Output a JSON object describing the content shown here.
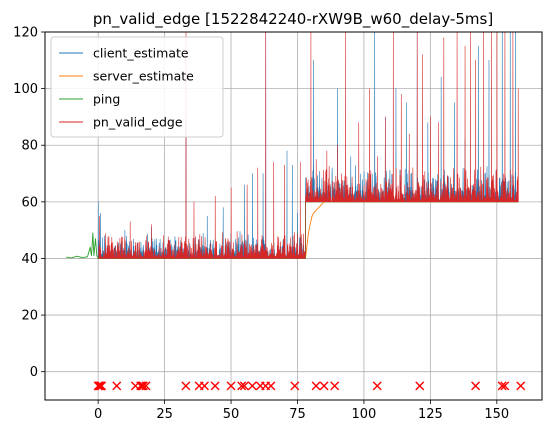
{
  "chart_data": {
    "type": "line",
    "title": "pn_valid_edge [1522842240-rXW9B_w60_delay-5ms]",
    "xlabel": "",
    "ylabel": "",
    "xlim": [
      -20,
      167
    ],
    "ylim": [
      -10,
      120
    ],
    "xticks": [
      0,
      25,
      50,
      75,
      100,
      125,
      150
    ],
    "yticks": [
      0,
      20,
      40,
      60,
      80,
      100,
      120
    ],
    "grid": true,
    "legend_position": "top-left",
    "series": [
      {
        "name": "client_estimate",
        "color": "#1f77b4",
        "base_levels": [
          {
            "x": [
              0,
              78
            ],
            "y": 40
          },
          {
            "x": [
              78,
              158
            ],
            "y": 60
          }
        ],
        "spikes": [
          [
            0,
            60
          ],
          [
            0.8,
            56
          ],
          [
            10,
            50
          ],
          [
            20,
            51
          ],
          [
            33,
            90
          ],
          [
            41,
            55
          ],
          [
            47,
            58
          ],
          [
            55,
            66
          ],
          [
            58,
            70
          ],
          [
            62,
            70
          ],
          [
            63,
            120
          ],
          [
            71,
            78
          ],
          [
            73,
            73
          ],
          [
            75,
            56
          ],
          [
            81,
            110
          ],
          [
            88,
            72
          ],
          [
            90,
            100
          ],
          [
            95,
            76
          ],
          [
            104,
            120
          ],
          [
            108,
            90
          ],
          [
            112,
            100
          ],
          [
            116,
            95
          ],
          [
            120,
            120
          ],
          [
            124,
            88
          ],
          [
            129,
            104
          ],
          [
            134,
            95
          ],
          [
            138,
            82
          ],
          [
            143,
            115
          ],
          [
            147,
            110
          ],
          [
            152,
            120
          ],
          [
            155,
            120
          ],
          [
            157,
            120
          ]
        ]
      },
      {
        "name": "server_estimate",
        "color": "#ff7f0e",
        "points": [
          [
            78,
            40
          ],
          [
            78.5,
            44
          ],
          [
            79,
            48
          ],
          [
            79.5,
            51
          ],
          [
            80,
            53
          ],
          [
            80.5,
            55
          ],
          [
            81,
            56
          ],
          [
            82,
            57
          ],
          [
            83,
            58
          ],
          [
            84,
            59
          ],
          [
            85,
            60
          ],
          [
            158,
            60
          ]
        ]
      },
      {
        "name": "ping",
        "color": "#2ca02c",
        "points": [
          [
            -12,
            40.5
          ],
          [
            -10,
            40.2
          ],
          [
            -8,
            40.8
          ],
          [
            -6,
            40.3
          ],
          [
            -4,
            40.6
          ],
          [
            -3,
            44
          ],
          [
            -2.5,
            41
          ],
          [
            -2,
            49
          ],
          [
            -1.6,
            41
          ],
          [
            -1,
            47
          ],
          [
            -0.5,
            41
          ],
          [
            0,
            40
          ],
          [
            78,
            40
          ],
          [
            78,
            60
          ],
          [
            158,
            60
          ]
        ]
      },
      {
        "name": "pn_valid_edge",
        "color": "#d62728",
        "base_levels": [
          {
            "x": [
              0,
              78
            ],
            "y": 40
          },
          {
            "x": [
              78,
              158
            ],
            "y": 60
          }
        ],
        "spikes": [
          [
            0.5,
            55
          ],
          [
            12,
            53
          ],
          [
            20,
            52
          ],
          [
            33,
            120
          ],
          [
            36,
            60
          ],
          [
            44,
            62
          ],
          [
            50,
            65
          ],
          [
            56,
            66
          ],
          [
            60,
            72
          ],
          [
            63,
            120
          ],
          [
            66,
            74
          ],
          [
            70,
            73
          ],
          [
            76,
            74
          ],
          [
            80,
            120
          ],
          [
            82,
            75
          ],
          [
            86,
            78
          ],
          [
            90,
            80
          ],
          [
            93,
            120
          ],
          [
            98,
            88
          ],
          [
            102,
            100
          ],
          [
            105,
            76
          ],
          [
            108,
            90
          ],
          [
            111,
            120
          ],
          [
            114,
            98
          ],
          [
            117,
            84
          ],
          [
            120,
            120
          ],
          [
            122,
            112
          ],
          [
            125,
            90
          ],
          [
            128,
            88
          ],
          [
            130,
            118
          ],
          [
            135,
            120
          ],
          [
            138,
            115
          ],
          [
            140,
            120
          ],
          [
            142,
            110
          ],
          [
            145,
            120
          ],
          [
            148,
            120
          ],
          [
            150,
            120
          ],
          [
            153,
            120
          ],
          [
            156,
            120
          ],
          [
            158,
            100
          ]
        ]
      }
    ],
    "markers": {
      "symbol": "x",
      "color": "#ff0000",
      "y": -5,
      "x": [
        0,
        0.3,
        0.6,
        1,
        1.3,
        7,
        14,
        16,
        16.5,
        17,
        18,
        33,
        38,
        40,
        44,
        50,
        54,
        55,
        58,
        61,
        63,
        65,
        74,
        82,
        85,
        89,
        105,
        121,
        142,
        152,
        153,
        159
      ]
    }
  }
}
